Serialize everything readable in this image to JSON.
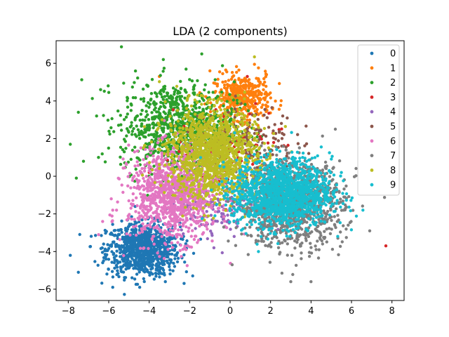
{
  "chart_data": {
    "type": "scatter",
    "title": "LDA (2 components)",
    "xlabel": "",
    "ylabel": "",
    "xlim": [
      -8.6,
      8.6
    ],
    "ylim": [
      -6.6,
      7.2
    ],
    "x_ticks": [
      -8,
      -6,
      -4,
      -2,
      0,
      2,
      4,
      6,
      8
    ],
    "y_ticks": [
      -6,
      -4,
      -2,
      0,
      2,
      4,
      6
    ],
    "grid": false,
    "legend_position": "top-right",
    "series": [
      {
        "name": "0",
        "color": "#1f77b4",
        "center": [
          -4.3,
          -3.9
        ],
        "spread": [
          0.9,
          0.7
        ],
        "count": 900,
        "outliers": [
          [
            -7.9,
            -4.2
          ],
          [
            -7.5,
            -5.1
          ],
          [
            -5.8,
            -5.9
          ],
          [
            -3.2,
            -5.6
          ]
        ]
      },
      {
        "name": "1",
        "color": "#ff7f0e",
        "center": [
          0.6,
          4.2
        ],
        "spread": [
          0.7,
          0.6
        ],
        "count": 420,
        "outliers": [
          [
            1.8,
            5.4
          ],
          [
            -3.5,
            5.3
          ],
          [
            -1.0,
            5.6
          ]
        ]
      },
      {
        "name": "2",
        "color": "#2ca02c",
        "center": [
          -2.6,
          2.6
        ],
        "spread": [
          1.4,
          1.2
        ],
        "count": 900,
        "outliers": [
          [
            -7.5,
            3.4
          ],
          [
            -7.9,
            1.7
          ],
          [
            -7.6,
            -0.1
          ],
          [
            -6.6,
            3.2
          ],
          [
            -1.4,
            6.5
          ],
          [
            -3.3,
            6.2
          ],
          [
            -6.4,
            4.6
          ]
        ]
      },
      {
        "name": "3",
        "color": "#d62728",
        "center": [
          0.3,
          1.0
        ],
        "spread": [
          1.5,
          1.2
        ],
        "count": 120,
        "outliers": [
          [
            7.7,
            -3.7
          ],
          [
            -4.0,
            0.2
          ],
          [
            -2.5,
            -0.1
          ]
        ]
      },
      {
        "name": "4",
        "color": "#9467bd",
        "center": [
          -0.5,
          -1.3
        ],
        "spread": [
          1.2,
          0.9
        ],
        "count": 160,
        "outliers": [
          [
            -0.8,
            -3.8
          ],
          [
            0.2,
            -3.2
          ]
        ]
      },
      {
        "name": "5",
        "color": "#8c564b",
        "center": [
          0.8,
          1.8
        ],
        "spread": [
          1.2,
          1.0
        ],
        "count": 160,
        "outliers": [
          [
            2.6,
            3.2
          ],
          [
            -1.2,
            2.8
          ]
        ]
      },
      {
        "name": "6",
        "color": "#e377c2",
        "center": [
          -2.8,
          -1.0
        ],
        "spread": [
          1.1,
          1.2
        ],
        "count": 1100,
        "outliers": [
          [
            -6.3,
            -2.4
          ],
          [
            -5.8,
            -1.8
          ],
          [
            -6.5,
            -3.1
          ]
        ]
      },
      {
        "name": "7",
        "color": "#7f7f7f",
        "center": [
          3.0,
          -1.5
        ],
        "spread": [
          1.3,
          1.1
        ],
        "count": 1100,
        "outliers": [
          [
            5.2,
            2.5
          ],
          [
            6.9,
            -2.9
          ],
          [
            3.0,
            -5.6
          ],
          [
            4.0,
            -5.6
          ],
          [
            5.7,
            -1.7
          ],
          [
            0.1,
            -4.7
          ]
        ]
      },
      {
        "name": "8",
        "color": "#bcbd22",
        "center": [
          -0.9,
          1.2
        ],
        "spread": [
          1.1,
          1.2
        ],
        "count": 1300,
        "outliers": [
          [
            -2.6,
            3.5
          ],
          [
            0.4,
            4.3
          ]
        ]
      },
      {
        "name": "9",
        "color": "#17becf",
        "center": [
          2.6,
          -0.9
        ],
        "spread": [
          1.2,
          0.9
        ],
        "count": 1400,
        "outliers": [
          [
            5.5,
            0.2
          ],
          [
            4.9,
            0.3
          ],
          [
            1.4,
            -4.0
          ]
        ]
      }
    ]
  }
}
